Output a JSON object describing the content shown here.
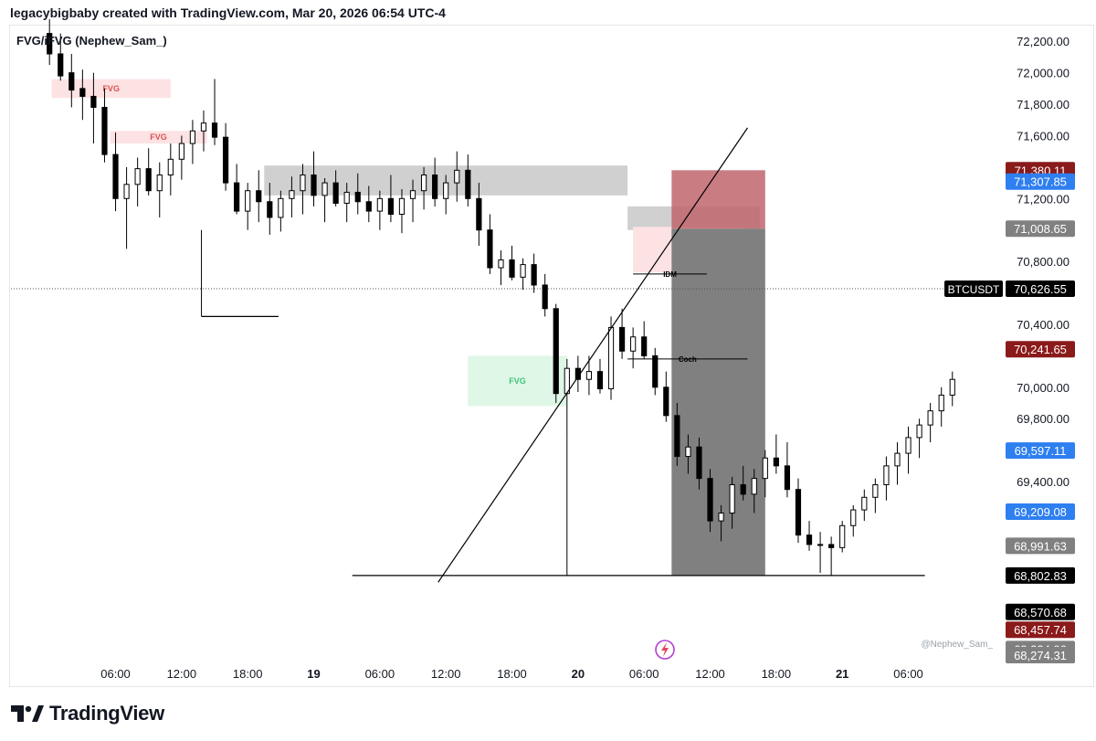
{
  "header": {
    "caption": "legacybigbaby created with TradingView.com, Mar 20, 2026 06:54 UTC-4"
  },
  "indicator": {
    "name": "FVG/iFVG (Nephew_Sam_)"
  },
  "brand": {
    "name": "TradingView"
  },
  "watermark": {
    "author": "@Nephew_Sam_"
  },
  "symbol": {
    "ticker": "BTCUSDT",
    "last_price": "70,626.55"
  },
  "colors": {
    "bull": "#ffffff",
    "bear": "#000000",
    "red_label": "#8b1a1a",
    "blue_label": "#2e7ff0",
    "grey_label": "#808080",
    "black_label": "#000000",
    "fvg_bear_zone": "#fde2e4",
    "fvg_bull_zone": "#dff7e6",
    "grey_zone": "#c8c8c8",
    "stop_zone": "#c0656b",
    "target_zone": "#808080"
  },
  "chart_data": {
    "type": "candlestick",
    "title": "",
    "y_axis": {
      "position": "right",
      "range": [
        68250,
        72300
      ],
      "ticks": [
        "72,200.00",
        "72,000.00",
        "71,800.00",
        "71,600.00",
        "71,200.00",
        "70,800.00",
        "70,400.00",
        "70,000.00",
        "69,800.00",
        "69,400.00"
      ]
    },
    "x_axis": {
      "range_hours": [
        -3.5,
        86.5
      ],
      "ticks": [
        {
          "t": 6,
          "label": "06:00",
          "bold": false
        },
        {
          "t": 12,
          "label": "12:00",
          "bold": false
        },
        {
          "t": 18,
          "label": "18:00",
          "bold": false
        },
        {
          "t": 24,
          "label": "19",
          "bold": true
        },
        {
          "t": 30,
          "label": "06:00",
          "bold": false
        },
        {
          "t": 36,
          "label": "12:00",
          "bold": false
        },
        {
          "t": 42,
          "label": "18:00",
          "bold": false
        },
        {
          "t": 48,
          "label": "20",
          "bold": true
        },
        {
          "t": 54,
          "label": "06:00",
          "bold": false
        },
        {
          "t": 60,
          "label": "12:00",
          "bold": false
        },
        {
          "t": 66,
          "label": "18:00",
          "bold": false
        },
        {
          "t": 72,
          "label": "21",
          "bold": true
        },
        {
          "t": 78,
          "label": "06:00",
          "bold": false
        }
      ]
    },
    "price_labels": [
      {
        "text": "71,380.11",
        "kind": "red"
      },
      {
        "text": "71,307.85",
        "kind": "blue"
      },
      {
        "text": "71,008.65",
        "kind": "grey"
      },
      {
        "text": "70,626.55",
        "kind": "black"
      },
      {
        "text": "70,241.65",
        "kind": "red"
      },
      {
        "text": "69,597.11",
        "kind": "blue"
      },
      {
        "text": "69,209.08",
        "kind": "blue"
      },
      {
        "text": "68,991.63",
        "kind": "grey"
      },
      {
        "text": "68,802.83",
        "kind": "black"
      },
      {
        "text": "68,570.68",
        "kind": "black"
      },
      {
        "text": "68,457.74",
        "kind": "red"
      },
      {
        "text": "68,334.96",
        "kind": "grey"
      },
      {
        "text": "68,274.31",
        "kind": "grey"
      }
    ],
    "zones": [
      {
        "label": "FVG",
        "kind": "bear_fvg",
        "t0": 0.2,
        "t1": 11,
        "p_low": 71840,
        "p_high": 71960
      },
      {
        "label": "FVG",
        "kind": "bear_fvg",
        "t0": 5.5,
        "t1": 14.3,
        "p_low": 71550,
        "p_high": 71630
      },
      {
        "label": "",
        "kind": "grey",
        "t0": 19.5,
        "t1": 52.5,
        "p_low": 71220,
        "p_high": 71410
      },
      {
        "label": "",
        "kind": "grey",
        "t0": 52.5,
        "t1": 64.5,
        "p_low": 71000,
        "p_high": 71150
      },
      {
        "label": "FVG",
        "kind": "bear_fvg",
        "t0": 53,
        "t1": 63,
        "p_low": 70730,
        "p_high": 71020
      },
      {
        "label": "FVG",
        "kind": "bull_fvg",
        "t0": 38,
        "t1": 47,
        "p_low": 69880,
        "p_high": 70200
      }
    ],
    "position": {
      "t0": 56.5,
      "t1": 65,
      "entry": 71008.65,
      "stop": 71380.11,
      "target": 68802.83
    },
    "trendline": {
      "t0": 35.3,
      "p0": 68760,
      "t1": 63.4,
      "p1": 71650
    },
    "annotations": [
      {
        "text": "IDM",
        "t0": 53,
        "t1": 59.7,
        "p": 70720
      },
      {
        "text": "Coch",
        "t0": 52.5,
        "t1": 63.4,
        "p": 70180
      }
    ],
    "levels": [
      {
        "t0": 13.8,
        "t1": 20.8,
        "p": 70450
      },
      {
        "t0": 27.5,
        "t1": 79.5,
        "p": 68802.83
      }
    ],
    "last_price": 70626.55,
    "candles": [
      {
        "t": 0,
        "o": 72250,
        "h": 72340,
        "l": 72050,
        "c": 72120
      },
      {
        "t": 1,
        "o": 72120,
        "h": 72250,
        "l": 71950,
        "c": 71980
      },
      {
        "t": 2,
        "o": 72000,
        "h": 72120,
        "l": 71780,
        "c": 71890
      },
      {
        "t": 3,
        "o": 71900,
        "h": 72020,
        "l": 71700,
        "c": 71850
      },
      {
        "t": 4,
        "o": 71850,
        "h": 72000,
        "l": 71550,
        "c": 71780
      },
      {
        "t": 5,
        "o": 71780,
        "h": 71900,
        "l": 71430,
        "c": 71480
      },
      {
        "t": 6,
        "o": 71480,
        "h": 71620,
        "l": 71120,
        "c": 71200
      },
      {
        "t": 7,
        "o": 71200,
        "h": 71400,
        "l": 70880,
        "c": 71290
      },
      {
        "t": 8,
        "o": 71290,
        "h": 71460,
        "l": 71150,
        "c": 71390
      },
      {
        "t": 9,
        "o": 71390,
        "h": 71520,
        "l": 71220,
        "c": 71250
      },
      {
        "t": 10,
        "o": 71250,
        "h": 71430,
        "l": 71080,
        "c": 71350
      },
      {
        "t": 11,
        "o": 71350,
        "h": 71550,
        "l": 71220,
        "c": 71450
      },
      {
        "t": 12,
        "o": 71450,
        "h": 71600,
        "l": 71320,
        "c": 71550
      },
      {
        "t": 13,
        "o": 71550,
        "h": 71700,
        "l": 71420,
        "c": 71630
      },
      {
        "t": 14,
        "o": 71630,
        "h": 71760,
        "l": 71500,
        "c": 71680
      },
      {
        "t": 15,
        "o": 71680,
        "h": 71960,
        "l": 71540,
        "c": 71590
      },
      {
        "t": 16,
        "o": 71590,
        "h": 71680,
        "l": 71250,
        "c": 71300
      },
      {
        "t": 17,
        "o": 71300,
        "h": 71420,
        "l": 71100,
        "c": 71120
      },
      {
        "t": 18,
        "o": 71120,
        "h": 71300,
        "l": 71000,
        "c": 71250
      },
      {
        "t": 19,
        "o": 71250,
        "h": 71380,
        "l": 71050,
        "c": 71180
      },
      {
        "t": 20,
        "o": 71180,
        "h": 71300,
        "l": 70970,
        "c": 71080
      },
      {
        "t": 21,
        "o": 71080,
        "h": 71250,
        "l": 70990,
        "c": 71200
      },
      {
        "t": 22,
        "o": 71200,
        "h": 71340,
        "l": 71080,
        "c": 71250
      },
      {
        "t": 23,
        "o": 71250,
        "h": 71420,
        "l": 71100,
        "c": 71350
      },
      {
        "t": 24,
        "o": 71350,
        "h": 71500,
        "l": 71150,
        "c": 71220
      },
      {
        "t": 25,
        "o": 71220,
        "h": 71330,
        "l": 71050,
        "c": 71300
      },
      {
        "t": 26,
        "o": 71300,
        "h": 71380,
        "l": 71150,
        "c": 71170
      },
      {
        "t": 27,
        "o": 71170,
        "h": 71300,
        "l": 71050,
        "c": 71240
      },
      {
        "t": 28,
        "o": 71240,
        "h": 71360,
        "l": 71100,
        "c": 71180
      },
      {
        "t": 29,
        "o": 71180,
        "h": 71280,
        "l": 71050,
        "c": 71120
      },
      {
        "t": 30,
        "o": 71120,
        "h": 71250,
        "l": 71000,
        "c": 71200
      },
      {
        "t": 31,
        "o": 71200,
        "h": 71350,
        "l": 71050,
        "c": 71100
      },
      {
        "t": 32,
        "o": 71100,
        "h": 71260,
        "l": 70980,
        "c": 71200
      },
      {
        "t": 33,
        "o": 71200,
        "h": 71320,
        "l": 71050,
        "c": 71250
      },
      {
        "t": 34,
        "o": 71250,
        "h": 71400,
        "l": 71130,
        "c": 71350
      },
      {
        "t": 35,
        "o": 71350,
        "h": 71460,
        "l": 71150,
        "c": 71200
      },
      {
        "t": 36,
        "o": 71200,
        "h": 71350,
        "l": 71100,
        "c": 71300
      },
      {
        "t": 37,
        "o": 71300,
        "h": 71500,
        "l": 71180,
        "c": 71380
      },
      {
        "t": 38,
        "o": 71380,
        "h": 71480,
        "l": 71150,
        "c": 71200
      },
      {
        "t": 39,
        "o": 71200,
        "h": 71300,
        "l": 70900,
        "c": 71000
      },
      {
        "t": 40,
        "o": 71000,
        "h": 71100,
        "l": 70720,
        "c": 70760
      },
      {
        "t": 41,
        "o": 70760,
        "h": 70870,
        "l": 70650,
        "c": 70810
      },
      {
        "t": 42,
        "o": 70810,
        "h": 70900,
        "l": 70680,
        "c": 70700
      },
      {
        "t": 43,
        "o": 70700,
        "h": 70820,
        "l": 70620,
        "c": 70780
      },
      {
        "t": 44,
        "o": 70780,
        "h": 70850,
        "l": 70600,
        "c": 70650
      },
      {
        "t": 45,
        "o": 70650,
        "h": 70720,
        "l": 70450,
        "c": 70500
      },
      {
        "t": 46,
        "o": 70500,
        "h": 70530,
        "l": 69900,
        "c": 69960
      },
      {
        "t": 47,
        "o": 69960,
        "h": 70180,
        "l": 69670,
        "c": 70120
      },
      {
        "t": 48,
        "o": 70120,
        "h": 70200,
        "l": 69970,
        "c": 70050
      },
      {
        "t": 49,
        "o": 70050,
        "h": 70200,
        "l": 69950,
        "c": 70100
      },
      {
        "t": 50,
        "o": 70100,
        "h": 70180,
        "l": 69960,
        "c": 69990
      },
      {
        "t": 51,
        "o": 69990,
        "h": 70450,
        "l": 69920,
        "c": 70380
      },
      {
        "t": 52,
        "o": 70380,
        "h": 70500,
        "l": 70180,
        "c": 70230
      },
      {
        "t": 53,
        "o": 70230,
        "h": 70380,
        "l": 70120,
        "c": 70320
      },
      {
        "t": 54,
        "o": 70320,
        "h": 70420,
        "l": 70180,
        "c": 70200
      },
      {
        "t": 55,
        "o": 70200,
        "h": 70250,
        "l": 69950,
        "c": 70000
      },
      {
        "t": 56,
        "o": 70000,
        "h": 70100,
        "l": 69780,
        "c": 69820
      },
      {
        "t": 57,
        "o": 69820,
        "h": 69900,
        "l": 69500,
        "c": 69560
      },
      {
        "t": 58,
        "o": 69560,
        "h": 69700,
        "l": 69450,
        "c": 69620
      },
      {
        "t": 59,
        "o": 69620,
        "h": 69680,
        "l": 69350,
        "c": 69420
      },
      {
        "t": 60,
        "o": 69420,
        "h": 69480,
        "l": 69080,
        "c": 69150
      },
      {
        "t": 61,
        "o": 69150,
        "h": 69250,
        "l": 69020,
        "c": 69200
      },
      {
        "t": 62,
        "o": 69200,
        "h": 69430,
        "l": 69100,
        "c": 69380
      },
      {
        "t": 63,
        "o": 69380,
        "h": 69500,
        "l": 69280,
        "c": 69320
      },
      {
        "t": 64,
        "o": 69320,
        "h": 69480,
        "l": 69200,
        "c": 69420
      },
      {
        "t": 65,
        "o": 69420,
        "h": 69600,
        "l": 69300,
        "c": 69550
      },
      {
        "t": 66,
        "o": 69550,
        "h": 69700,
        "l": 69450,
        "c": 69500
      },
      {
        "t": 67,
        "o": 69500,
        "h": 69650,
        "l": 69300,
        "c": 69350
      },
      {
        "t": 68,
        "o": 69350,
        "h": 69420,
        "l": 69010,
        "c": 69060
      },
      {
        "t": 69,
        "o": 69060,
        "h": 69150,
        "l": 68960,
        "c": 69000
      },
      {
        "t": 70,
        "o": 69000,
        "h": 69080,
        "l": 68820,
        "c": 69000
      },
      {
        "t": 71,
        "o": 69000,
        "h": 69050,
        "l": 68800,
        "c": 68980
      },
      {
        "t": 72,
        "o": 68980,
        "h": 69150,
        "l": 68950,
        "c": 69120
      },
      {
        "t": 73,
        "o": 69120,
        "h": 69250,
        "l": 69050,
        "c": 69220
      },
      {
        "t": 74,
        "o": 69220,
        "h": 69350,
        "l": 69150,
        "c": 69300
      },
      {
        "t": 75,
        "o": 69300,
        "h": 69420,
        "l": 69200,
        "c": 69380
      },
      {
        "t": 76,
        "o": 69380,
        "h": 69560,
        "l": 69280,
        "c": 69500
      },
      {
        "t": 77,
        "o": 69500,
        "h": 69650,
        "l": 69380,
        "c": 69580
      },
      {
        "t": 78,
        "o": 69580,
        "h": 69750,
        "l": 69450,
        "c": 69680
      },
      {
        "t": 79,
        "o": 69680,
        "h": 69800,
        "l": 69550,
        "c": 69760
      },
      {
        "t": 80,
        "o": 69760,
        "h": 69900,
        "l": 69650,
        "c": 69850
      },
      {
        "t": 81,
        "o": 69850,
        "h": 70000,
        "l": 69750,
        "c": 69950
      },
      {
        "t": 82,
        "o": 69950,
        "h": 70100,
        "l": 69880,
        "c": 70050
      }
    ]
  }
}
